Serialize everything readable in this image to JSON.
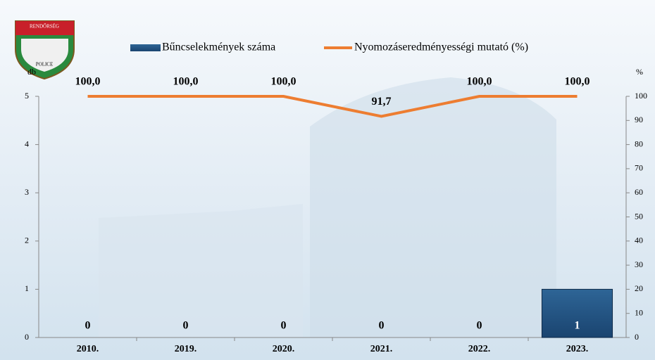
{
  "chart_data": {
    "type": "bar",
    "logo": {
      "top": "RENDŐRSÉG",
      "bottom": "POLICE"
    },
    "categories": [
      "2010.",
      "2019.",
      "2020.",
      "2021.",
      "2022.",
      "2023."
    ],
    "ylabel": "db",
    "y2label": "%",
    "ylim": [
      0,
      5
    ],
    "yticks": [
      0,
      1,
      2,
      3,
      4,
      5
    ],
    "y2lim": [
      0,
      100
    ],
    "y2ticks": [
      0,
      10,
      20,
      30,
      40,
      50,
      60,
      70,
      80,
      90,
      100
    ],
    "series": [
      {
        "name": "Bűncselekmények száma",
        "type": "bar",
        "color": "#1f4e79",
        "values": [
          0,
          0,
          0,
          0,
          0,
          1
        ]
      },
      {
        "name": "Nyomozáseredményességi mutató (%)",
        "type": "line",
        "axis": "y2",
        "color": "#ed7d31",
        "values": [
          100,
          100,
          100,
          91.7,
          100,
          100
        ],
        "value_labels": [
          "100,0",
          "100,0",
          "100,0",
          "91,7",
          "100,0",
          "100,0"
        ]
      }
    ]
  }
}
